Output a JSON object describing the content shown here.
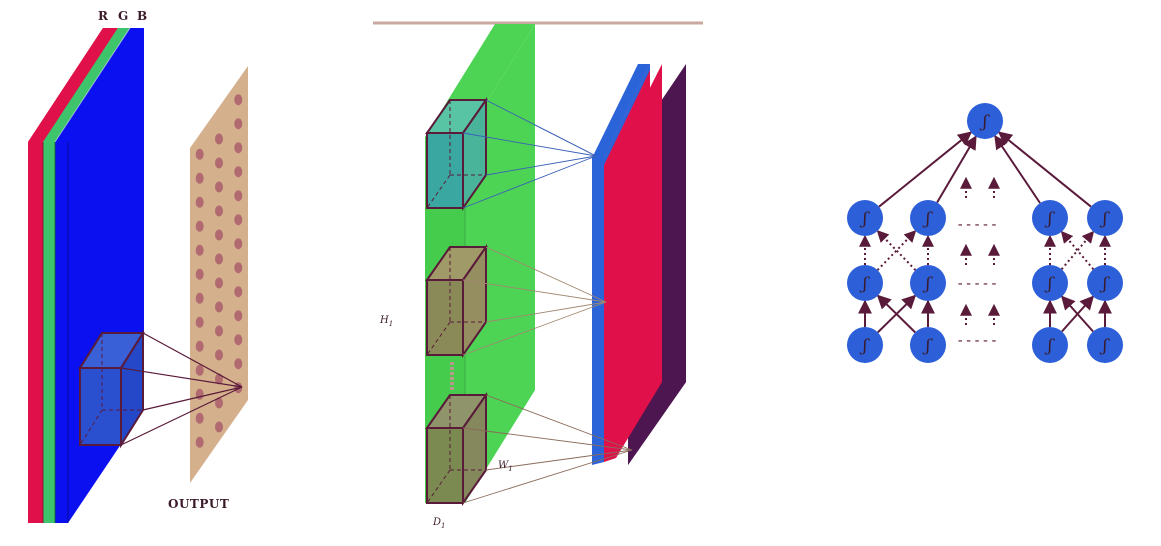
{
  "panel_input": {
    "channel_labels": [
      "R",
      "G",
      "B"
    ],
    "channel_colors": [
      "#e0104a",
      "#3ec46a",
      "#0a10f0"
    ],
    "output_label": "OUTPUT",
    "output_color": "#d4b08c",
    "output_dot_color": "#b06a70",
    "kernel_color": "#2a50d0",
    "edge_color": "#5a1a3a"
  },
  "panel_conv": {
    "volume_color": "#4ed454",
    "label_height": "H",
    "label_width": "W",
    "label_depth": "D",
    "label_subscript": "1",
    "kernel_colors": [
      "#3aa8a0",
      "#8a8a58",
      "#7a8a50"
    ],
    "map_colors": [
      "#2a64d8",
      "#e0104a",
      "#4e1650"
    ],
    "topbar_color": "#c8a8a0"
  },
  "panel_network": {
    "node_color": "#2c5fd8",
    "edge_color": "#5a1a3a",
    "node_symbol": "ʃ",
    "ellipsis": "-----"
  }
}
